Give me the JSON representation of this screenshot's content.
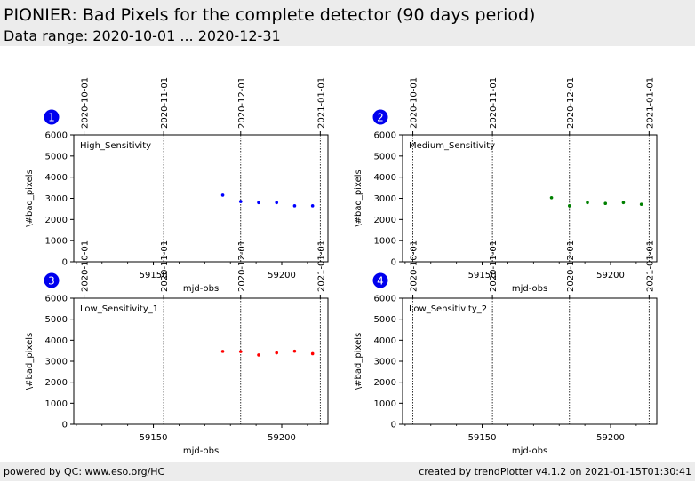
{
  "header": {
    "title": "PIONIER: Bad Pixels for the complete detector (90 days period)",
    "subtitle": "Data range: 2020-10-01 ... 2020-12-31"
  },
  "footer": {
    "left": "powered by QC: www.eso.org/HC",
    "right": "created by trendPlotter v4.1.2 on 2021-01-15T01:30:41"
  },
  "colors": {
    "header_bg": "#ececec",
    "badge": "#0000ee",
    "series1": "#0000ff",
    "series2": "#008000",
    "series3": "#ff0000"
  },
  "chart_data": [
    {
      "type": "scatter",
      "badge": "1",
      "panel_label": "High_Sensitivity",
      "xlabel": "mjd-obs",
      "ylabel": "\\#bad_pixels",
      "xlim": [
        59119,
        59218
      ],
      "ylim": [
        0,
        6000
      ],
      "xticks": [
        59150,
        59200
      ],
      "yticks": [
        0,
        1000,
        2000,
        3000,
        4000,
        5000,
        6000
      ],
      "date_markers": [
        {
          "label": "2020-10-01",
          "mjd": 59123
        },
        {
          "label": "2020-11-01",
          "mjd": 59154
        },
        {
          "label": "2020-12-01",
          "mjd": 59184
        },
        {
          "label": "2021-01-01",
          "mjd": 59215
        }
      ],
      "color": "#0000ff",
      "x": [
        59177,
        59184,
        59191,
        59198,
        59205,
        59212
      ],
      "y": [
        3150,
        2850,
        2800,
        2800,
        2650,
        2650
      ]
    },
    {
      "type": "scatter",
      "badge": "2",
      "panel_label": "Medium_Sensitivity",
      "xlabel": "mjd-obs",
      "ylabel": "\\#bad_pixels",
      "xlim": [
        59119,
        59218
      ],
      "ylim": [
        0,
        6000
      ],
      "xticks": [
        59150,
        59200
      ],
      "yticks": [
        0,
        1000,
        2000,
        3000,
        4000,
        5000,
        6000
      ],
      "date_markers": [
        {
          "label": "2020-10-01",
          "mjd": 59123
        },
        {
          "label": "2020-11-01",
          "mjd": 59154
        },
        {
          "label": "2020-12-01",
          "mjd": 59184
        },
        {
          "label": "2021-01-01",
          "mjd": 59215
        }
      ],
      "color": "#008000",
      "x": [
        59177,
        59184,
        59191,
        59198,
        59205,
        59212
      ],
      "y": [
        3030,
        2650,
        2800,
        2760,
        2800,
        2720
      ]
    },
    {
      "type": "scatter",
      "badge": "3",
      "panel_label": "Low_Sensitivity_1",
      "xlabel": "mjd-obs",
      "ylabel": "\\#bad_pixels",
      "xlim": [
        59119,
        59218
      ],
      "ylim": [
        0,
        6000
      ],
      "xticks": [
        59150,
        59200
      ],
      "yticks": [
        0,
        1000,
        2000,
        3000,
        4000,
        5000,
        6000
      ],
      "date_markers": [
        {
          "label": "2020-10-01",
          "mjd": 59123
        },
        {
          "label": "2020-11-01",
          "mjd": 59154
        },
        {
          "label": "2020-12-01",
          "mjd": 59184
        },
        {
          "label": "2021-01-01",
          "mjd": 59215
        }
      ],
      "color": "#ff0000",
      "x": [
        59177,
        59184,
        59191,
        59198,
        59205,
        59212
      ],
      "y": [
        3470,
        3460,
        3300,
        3400,
        3480,
        3360
      ]
    },
    {
      "type": "scatter",
      "badge": "4",
      "panel_label": "Low_Sensitivity_2",
      "xlabel": "mjd-obs",
      "ylabel": "\\#bad_pixels",
      "xlim": [
        59119,
        59218
      ],
      "ylim": [
        0,
        6000
      ],
      "xticks": [
        59150,
        59200
      ],
      "yticks": [
        0,
        1000,
        2000,
        3000,
        4000,
        5000,
        6000
      ],
      "date_markers": [
        {
          "label": "2020-10-01",
          "mjd": 59123
        },
        {
          "label": "2020-11-01",
          "mjd": 59154
        },
        {
          "label": "2020-12-01",
          "mjd": 59184
        },
        {
          "label": "2021-01-01",
          "mjd": 59215
        }
      ],
      "color": "#000000",
      "x": [],
      "y": []
    }
  ]
}
